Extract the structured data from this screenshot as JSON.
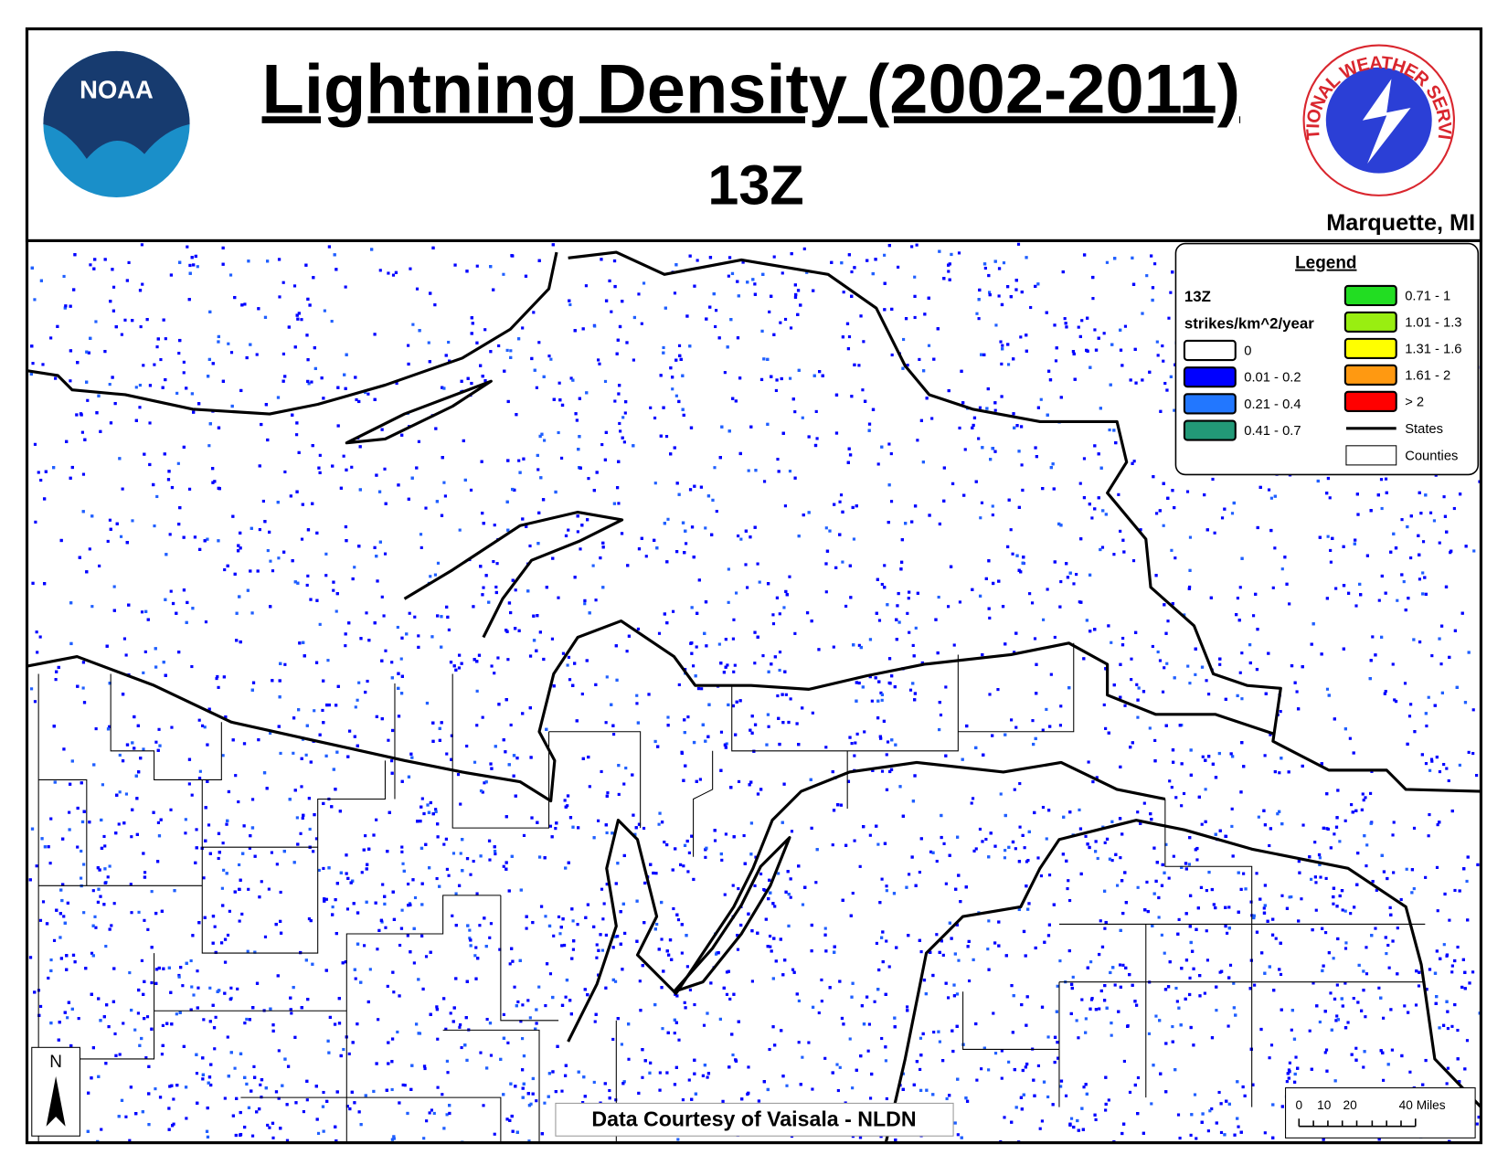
{
  "header": {
    "title": "Lightning Density (2002-2011)",
    "subtitle": "13Z",
    "office": "Marquette, MI",
    "noaa_logo": "NOAA",
    "nws_logo": "NATIONAL WEATHER SERVICE"
  },
  "legend": {
    "title": "Legend",
    "hour": "13Z",
    "units": "strikes/km^2/year",
    "items": [
      {
        "label": "0",
        "color": "#ffffff"
      },
      {
        "label": "0.01 - 0.2",
        "color": "#0000ff"
      },
      {
        "label": "0.21 - 0.4",
        "color": "#2277ff"
      },
      {
        "label": "0.41 - 0.7",
        "color": "#229977"
      },
      {
        "label": "0.71 - 1",
        "color": "#22dd22"
      },
      {
        "label": "1.01 - 1.3",
        "color": "#99ee11"
      },
      {
        "label": "1.31 - 1.6",
        "color": "#ffff00"
      },
      {
        "label": "1.61 - 2",
        "color": "#ff9911"
      },
      {
        "label": "> 2",
        "color": "#ff0000"
      }
    ],
    "lines": [
      {
        "label": "States"
      },
      {
        "label": "Counties"
      }
    ]
  },
  "scale_bar": {
    "labels": [
      "0",
      "10",
      "20",
      "40 Miles"
    ]
  },
  "north_arrow": "N",
  "credit": "Data Courtesy of Vaisala - NLDN"
}
